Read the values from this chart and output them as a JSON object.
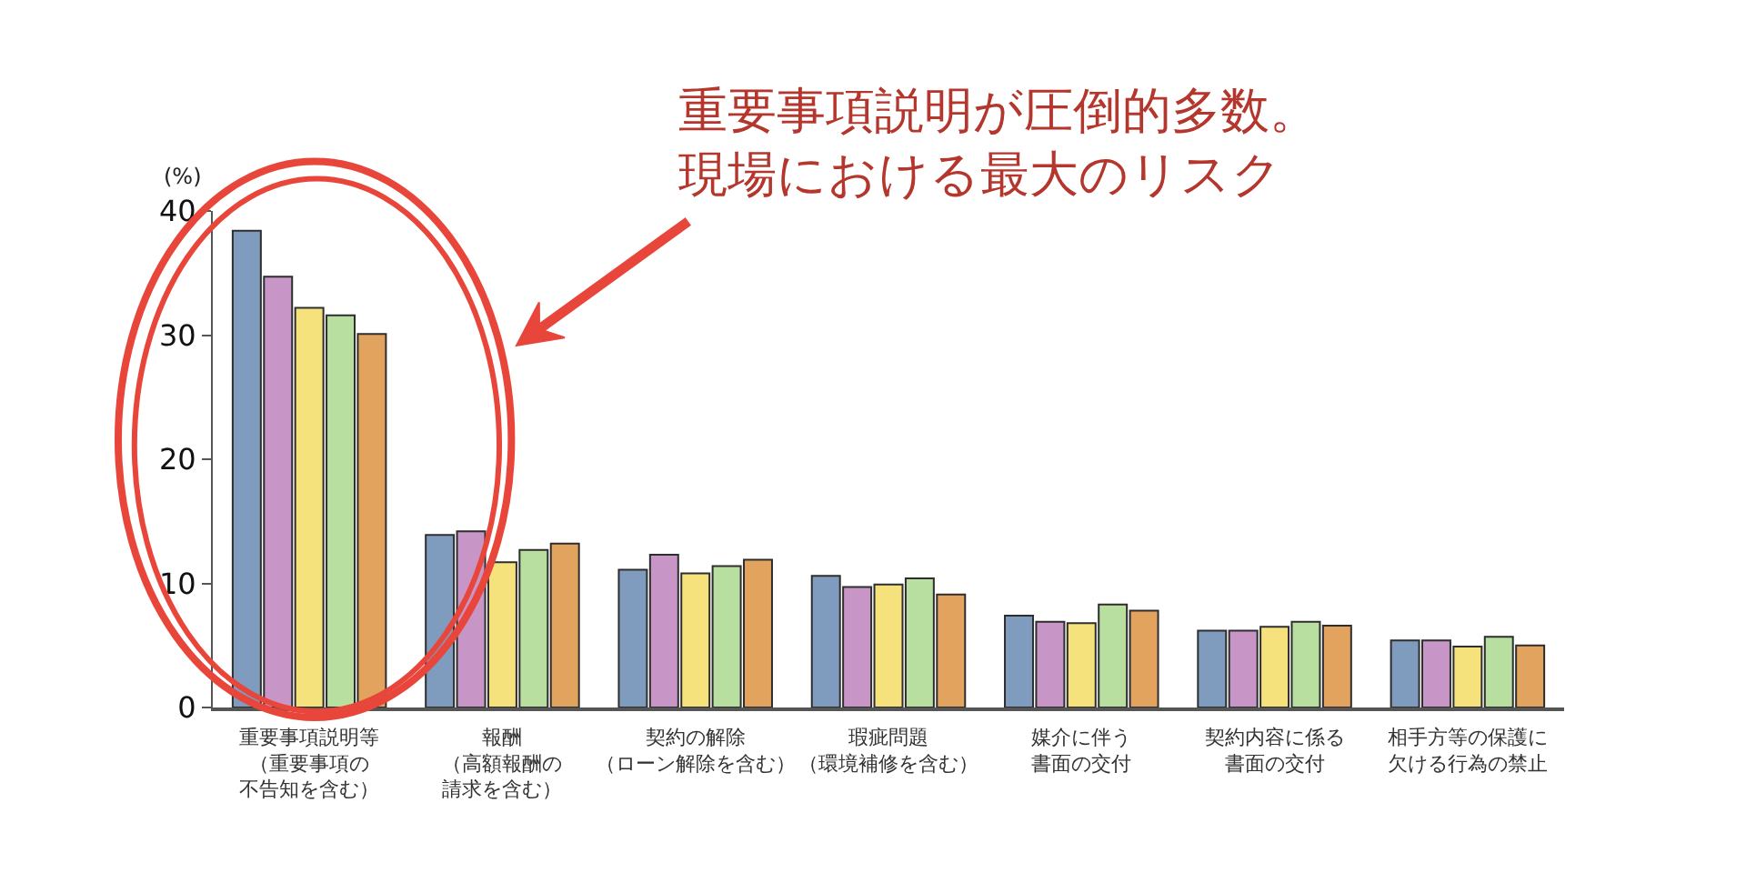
{
  "chart_data": {
    "type": "bar",
    "categories": [
      "重要事項説明等（重要事項の不告知を含む）",
      "報酬（高額報酬の請求を含む）",
      "契約の解除（ローン解除を含む）",
      "瑕疵問題（環境補修を含む）",
      "媒介に伴う書面の交付",
      "契約内容に係る書面の交付",
      "相手方等の保護に欠ける行為の禁止"
    ],
    "series": [
      {
        "color": "#7f9bbd",
        "values": [
          38.4,
          13.9,
          11.1,
          10.6,
          7.4,
          6.2,
          5.4
        ]
      },
      {
        "color": "#c896c6",
        "values": [
          34.7,
          14.2,
          12.3,
          9.7,
          6.9,
          6.2,
          5.4
        ]
      },
      {
        "color": "#f6e27c",
        "values": [
          32.2,
          11.7,
          10.8,
          9.9,
          6.8,
          6.5,
          4.9
        ]
      },
      {
        "color": "#b8dea0",
        "values": [
          31.6,
          12.7,
          11.4,
          10.4,
          8.3,
          6.9,
          5.7
        ]
      },
      {
        "color": "#e2a35e",
        "values": [
          30.1,
          13.2,
          11.9,
          9.1,
          7.8,
          6.6,
          5.0
        ]
      }
    ],
    "ylabel": "(%)",
    "ylim": [
      0,
      40
    ],
    "yticks": [
      0,
      10,
      20,
      30,
      40
    ],
    "annotations": [
      "重要事項説明が圧倒的多数。現場における最大のリスク"
    ]
  }
}
